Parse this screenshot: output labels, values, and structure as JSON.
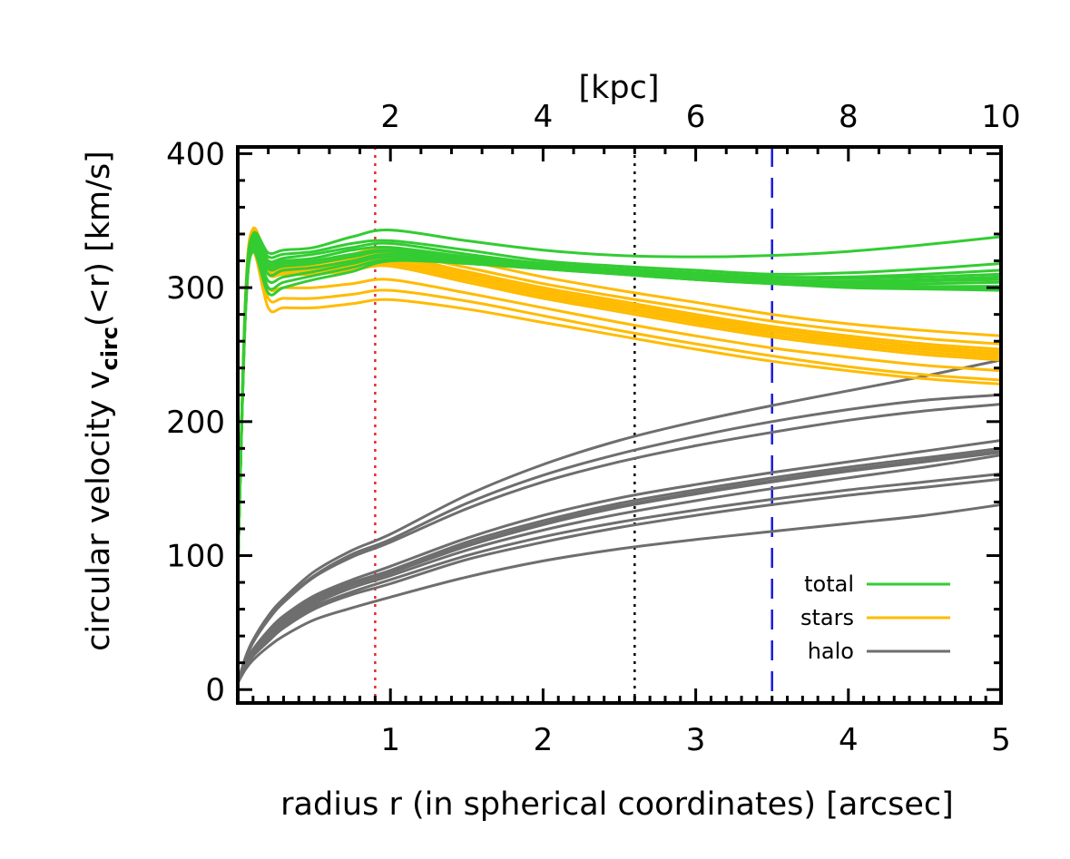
{
  "chart_data": {
    "type": "line",
    "xlabel": "radius r (in spherical coordinates) [arcsec]",
    "ylabel_parts": {
      "main": "circular velocity v",
      "sub": "circ",
      "rest": "(<r) [km/s]"
    },
    "top_xlabel": "[kpc]",
    "xlim": [
      0,
      5
    ],
    "ylim": [
      -10,
      405
    ],
    "top_xlim_kpc": [
      0,
      10
    ],
    "x_ticks": [
      1,
      2,
      3,
      4,
      5
    ],
    "x_tick_labels": [
      "1",
      "2",
      "3",
      "4",
      "5"
    ],
    "top_x_ticks": [
      2,
      4,
      6,
      8,
      10
    ],
    "top_x_tick_labels": [
      "2",
      "4",
      "6",
      "8",
      "10"
    ],
    "y_ticks": [
      0,
      100,
      200,
      300,
      400
    ],
    "y_tick_labels": [
      "0",
      "100",
      "200",
      "300",
      "400"
    ],
    "vertical_lines": [
      {
        "x": 0.9,
        "color": "#e8262c",
        "style": "dotted"
      },
      {
        "x": 2.6,
        "color": "#000000",
        "style": "dotted"
      },
      {
        "x": 3.5,
        "color": "#1a1adb",
        "style": "dashed"
      }
    ],
    "legend": {
      "placement": "bottom-right",
      "items": [
        {
          "label": "total",
          "color": "#33cc33"
        },
        {
          "label": "stars",
          "color": "#ffbb00"
        },
        {
          "label": "halo",
          "color": "#6e6e6e"
        }
      ]
    },
    "x": [
      0,
      0.05,
      0.1,
      0.2,
      0.3,
      0.5,
      0.75,
      1.0,
      1.5,
      2.0,
      2.5,
      3.0,
      3.5,
      4.0,
      4.5,
      5.0
    ],
    "series_groups": [
      {
        "name": "total",
        "color": "#33cc33",
        "curves": [
          [
            90,
            290,
            340,
            326,
            328,
            330,
            338,
            343,
            335,
            328,
            324,
            323,
            324,
            327,
            332,
            338
          ],
          [
            90,
            288,
            338,
            323,
            325,
            327,
            333,
            335,
            328,
            320,
            316,
            313,
            310,
            311,
            314,
            318
          ],
          [
            90,
            286,
            336,
            320,
            322,
            325,
            330,
            333,
            325,
            318,
            314,
            311,
            308,
            308,
            310,
            313
          ],
          [
            90,
            285,
            335,
            318,
            320,
            322,
            328,
            330,
            323,
            317,
            313,
            310,
            308,
            307,
            308,
            310
          ],
          [
            90,
            284,
            334,
            316,
            318,
            320,
            325,
            328,
            322,
            316,
            312,
            309,
            306,
            305,
            306,
            308
          ],
          [
            90,
            283,
            333,
            314,
            316,
            318,
            323,
            327,
            321,
            316,
            312,
            309,
            306,
            304,
            305,
            306
          ],
          [
            90,
            282,
            332,
            310,
            313,
            315,
            320,
            325,
            320,
            315,
            311,
            308,
            305,
            303,
            303,
            304
          ],
          [
            90,
            281,
            330,
            305,
            308,
            312,
            318,
            323,
            319,
            315,
            311,
            307,
            304,
            302,
            301,
            301
          ],
          [
            90,
            280,
            328,
            300,
            304,
            309,
            315,
            321,
            318,
            314,
            310,
            306,
            303,
            301,
            300,
            299
          ],
          [
            90,
            279,
            327,
            296,
            300,
            306,
            312,
            320,
            318,
            314,
            310,
            306,
            303,
            300,
            299,
            298
          ]
        ]
      },
      {
        "name": "stars",
        "color": "#ffbb00",
        "curves": [
          [
            90,
            292,
            344,
            320,
            320,
            320,
            325,
            330,
            320,
            308,
            298,
            289,
            280,
            273,
            268,
            264
          ],
          [
            90,
            290,
            342,
            318,
            318,
            318,
            322,
            326,
            315,
            303,
            293,
            284,
            275,
            268,
            262,
            258
          ],
          [
            90,
            289,
            341,
            316,
            316,
            316,
            320,
            324,
            312,
            300,
            290,
            280,
            271,
            264,
            258,
            254
          ],
          [
            90,
            288,
            340,
            315,
            315,
            315,
            318,
            322,
            310,
            298,
            288,
            278,
            269,
            262,
            256,
            252
          ],
          [
            90,
            287,
            339,
            314,
            314,
            314,
            317,
            320,
            308,
            296,
            286,
            276,
            267,
            260,
            254,
            250
          ],
          [
            90,
            286,
            338,
            312,
            312,
            312,
            315,
            318,
            306,
            294,
            284,
            274,
            265,
            258,
            252,
            248
          ],
          [
            90,
            285,
            336,
            310,
            310,
            310,
            313,
            316,
            304,
            292,
            282,
            272,
            263,
            256,
            250,
            246
          ],
          [
            90,
            283,
            333,
            300,
            300,
            300,
            303,
            306,
            296,
            285,
            274,
            264,
            255,
            248,
            242,
            238
          ],
          [
            90,
            281,
            330,
            292,
            292,
            292,
            295,
            298,
            290,
            279,
            268,
            258,
            249,
            241,
            235,
            231
          ],
          [
            90,
            279,
            327,
            285,
            285,
            285,
            288,
            291,
            284,
            274,
            264,
            254,
            245,
            238,
            232,
            228
          ]
        ]
      },
      {
        "name": "halo",
        "color": "#6e6e6e",
        "curves": [
          [
            5,
            24,
            37,
            55,
            68,
            88,
            104,
            116,
            145,
            168,
            186,
            200,
            212,
            223,
            234,
            246
          ],
          [
            5,
            23,
            36,
            53,
            66,
            85,
            101,
            112,
            139,
            160,
            176,
            189,
            200,
            209,
            216,
            220
          ],
          [
            5,
            22,
            35,
            52,
            65,
            84,
            99,
            110,
            135,
            155,
            170,
            182,
            192,
            201,
            208,
            213
          ],
          [
            5,
            20,
            30,
            44,
            55,
            70,
            82,
            92,
            113,
            130,
            143,
            153,
            162,
            170,
            178,
            186
          ],
          [
            5,
            19,
            29,
            42,
            53,
            68,
            80,
            89,
            110,
            126,
            139,
            149,
            158,
            166,
            173,
            180
          ],
          [
            5,
            19,
            28,
            41,
            52,
            67,
            79,
            88,
            108,
            124,
            137,
            147,
            156,
            164,
            171,
            178
          ],
          [
            5,
            18,
            28,
            40,
            51,
            66,
            78,
            87,
            107,
            123,
            136,
            146,
            155,
            163,
            170,
            177
          ],
          [
            5,
            18,
            27,
            39,
            50,
            64,
            76,
            85,
            104,
            119,
            131,
            141,
            150,
            158,
            166,
            175
          ],
          [
            5,
            17,
            26,
            38,
            48,
            62,
            73,
            82,
            100,
            114,
            125,
            134,
            142,
            149,
            155,
            161
          ],
          [
            5,
            16,
            25,
            36,
            46,
            60,
            71,
            79,
            97,
            110,
            121,
            130,
            138,
            145,
            151,
            157
          ],
          [
            5,
            15,
            22,
            32,
            40,
            52,
            61,
            69,
            84,
            96,
            105,
            112,
            118,
            124,
            130,
            138
          ]
        ]
      }
    ]
  }
}
